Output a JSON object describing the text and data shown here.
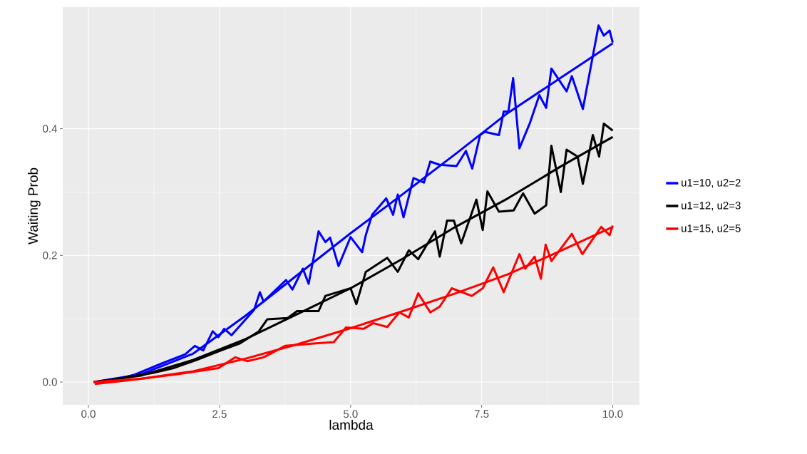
{
  "chart_data": {
    "type": "line",
    "xlabel": "lambda",
    "ylabel": "Waiting Prob",
    "xlim": [
      -0.49,
      10.51
    ],
    "ylim": [
      -0.036,
      0.592
    ],
    "xticks": [
      {
        "value": 0,
        "label": "0.0"
      },
      2.5,
      {
        "value": 5,
        "label": "5.0"
      },
      7.5,
      {
        "value": 10,
        "label": "10.0"
      }
    ],
    "yticks": [
      {
        "value": 0,
        "label": "0.0"
      },
      0.2,
      0.4
    ],
    "grid": true,
    "legend": "right",
    "series": [
      {
        "name": "u1=10, u2=2",
        "color": "#0000ff",
        "x": [
          0.49,
          0.89,
          1.39,
          1.85,
          2.03,
          2.19,
          2.37,
          2.48,
          2.59,
          2.73,
          3.16,
          3.27,
          3.34,
          3.77,
          3.89,
          4.09,
          4.2,
          4.39,
          4.52,
          4.61,
          4.77,
          5.0,
          5.22,
          5.29,
          5.41,
          5.68,
          5.81,
          5.9,
          6.01,
          6.2,
          6.4,
          6.52,
          6.7,
          7.02,
          7.2,
          7.32,
          7.47,
          7.56,
          7.83,
          7.92,
          8.01,
          8.1,
          8.22,
          8.42,
          8.6,
          8.73,
          8.83,
          9.12,
          9.22,
          9.43,
          9.73,
          9.83,
          9.94,
          10.0
        ],
        "values": [
          0.003,
          0.012,
          0.029,
          0.044,
          0.057,
          0.05,
          0.08,
          0.071,
          0.084,
          0.074,
          0.114,
          0.142,
          0.127,
          0.161,
          0.146,
          0.179,
          0.155,
          0.238,
          0.221,
          0.228,
          0.183,
          0.229,
          0.205,
          0.232,
          0.264,
          0.29,
          0.264,
          0.296,
          0.26,
          0.322,
          0.315,
          0.348,
          0.343,
          0.341,
          0.365,
          0.337,
          0.39,
          0.395,
          0.39,
          0.427,
          0.427,
          0.48,
          0.369,
          0.409,
          0.453,
          0.433,
          0.495,
          0.459,
          0.483,
          0.431,
          0.563,
          0.547,
          0.555,
          0.536
        ]
      },
      {
        "color": "#0000ff",
        "x": [
          0.1,
          1,
          2,
          3,
          4,
          5,
          6,
          7,
          8,
          9,
          10
        ],
        "values": [
          0,
          0.012,
          0.045,
          0.105,
          0.17,
          0.235,
          0.297,
          0.36,
          0.425,
          0.48,
          0.535
        ]
      },
      {
        "name": "u1=12, u2=3",
        "color": "#000000",
        "x": [
          0.67,
          1.21,
          1.62,
          2.07,
          2.53,
          2.89,
          3.25,
          3.41,
          3.8,
          3.98,
          4.39,
          4.52,
          5.0,
          5.11,
          5.29,
          5.7,
          5.9,
          6.11,
          6.29,
          6.61,
          6.7,
          6.84,
          6.97,
          7.11,
          7.4,
          7.52,
          7.61,
          7.83,
          8.11,
          8.29,
          8.51,
          8.73,
          8.83,
          9.01,
          9.12,
          9.33,
          9.43,
          9.62,
          9.74,
          9.83,
          10.0
        ],
        "values": [
          0.007,
          0.014,
          0.022,
          0.035,
          0.05,
          0.061,
          0.08,
          0.099,
          0.101,
          0.112,
          0.112,
          0.136,
          0.148,
          0.123,
          0.174,
          0.196,
          0.174,
          0.208,
          0.194,
          0.238,
          0.198,
          0.255,
          0.255,
          0.219,
          0.288,
          0.24,
          0.301,
          0.269,
          0.271,
          0.298,
          0.266,
          0.279,
          0.373,
          0.3,
          0.367,
          0.356,
          0.313,
          0.39,
          0.356,
          0.408,
          0.397
        ]
      },
      {
        "color": "#000000",
        "x": [
          0.1,
          1,
          2,
          3,
          4,
          5,
          6,
          7,
          8,
          9,
          10
        ],
        "values": [
          0,
          0.01,
          0.035,
          0.068,
          0.108,
          0.148,
          0.195,
          0.245,
          0.29,
          0.34,
          0.387
        ]
      },
      {
        "name": "u1=15, u2=5",
        "color": "#ff0000",
        "x": [
          0.12,
          0.8,
          1.67,
          2.48,
          2.8,
          3.03,
          3.34,
          3.75,
          4.34,
          4.68,
          4.91,
          5.25,
          5.43,
          5.7,
          5.93,
          6.11,
          6.29,
          6.52,
          6.7,
          6.93,
          7.31,
          7.52,
          7.72,
          7.92,
          8.22,
          8.33,
          8.51,
          8.63,
          8.72,
          8.83,
          9.22,
          9.42,
          9.78,
          9.94,
          10.0
        ],
        "values": [
          -0.003,
          0.003,
          0.012,
          0.022,
          0.039,
          0.033,
          0.039,
          0.057,
          0.061,
          0.063,
          0.086,
          0.084,
          0.093,
          0.087,
          0.11,
          0.102,
          0.14,
          0.11,
          0.119,
          0.148,
          0.136,
          0.148,
          0.181,
          0.142,
          0.202,
          0.179,
          0.198,
          0.163,
          0.217,
          0.191,
          0.234,
          0.202,
          0.245,
          0.232,
          0.247
        ]
      },
      {
        "color": "#ff0000",
        "x": [
          0.1,
          1,
          2,
          3,
          4,
          5,
          6,
          7,
          8,
          9,
          10
        ],
        "values": [
          0,
          0.005,
          0.017,
          0.037,
          0.06,
          0.085,
          0.112,
          0.14,
          0.17,
          0.207,
          0.245
        ]
      }
    ]
  }
}
